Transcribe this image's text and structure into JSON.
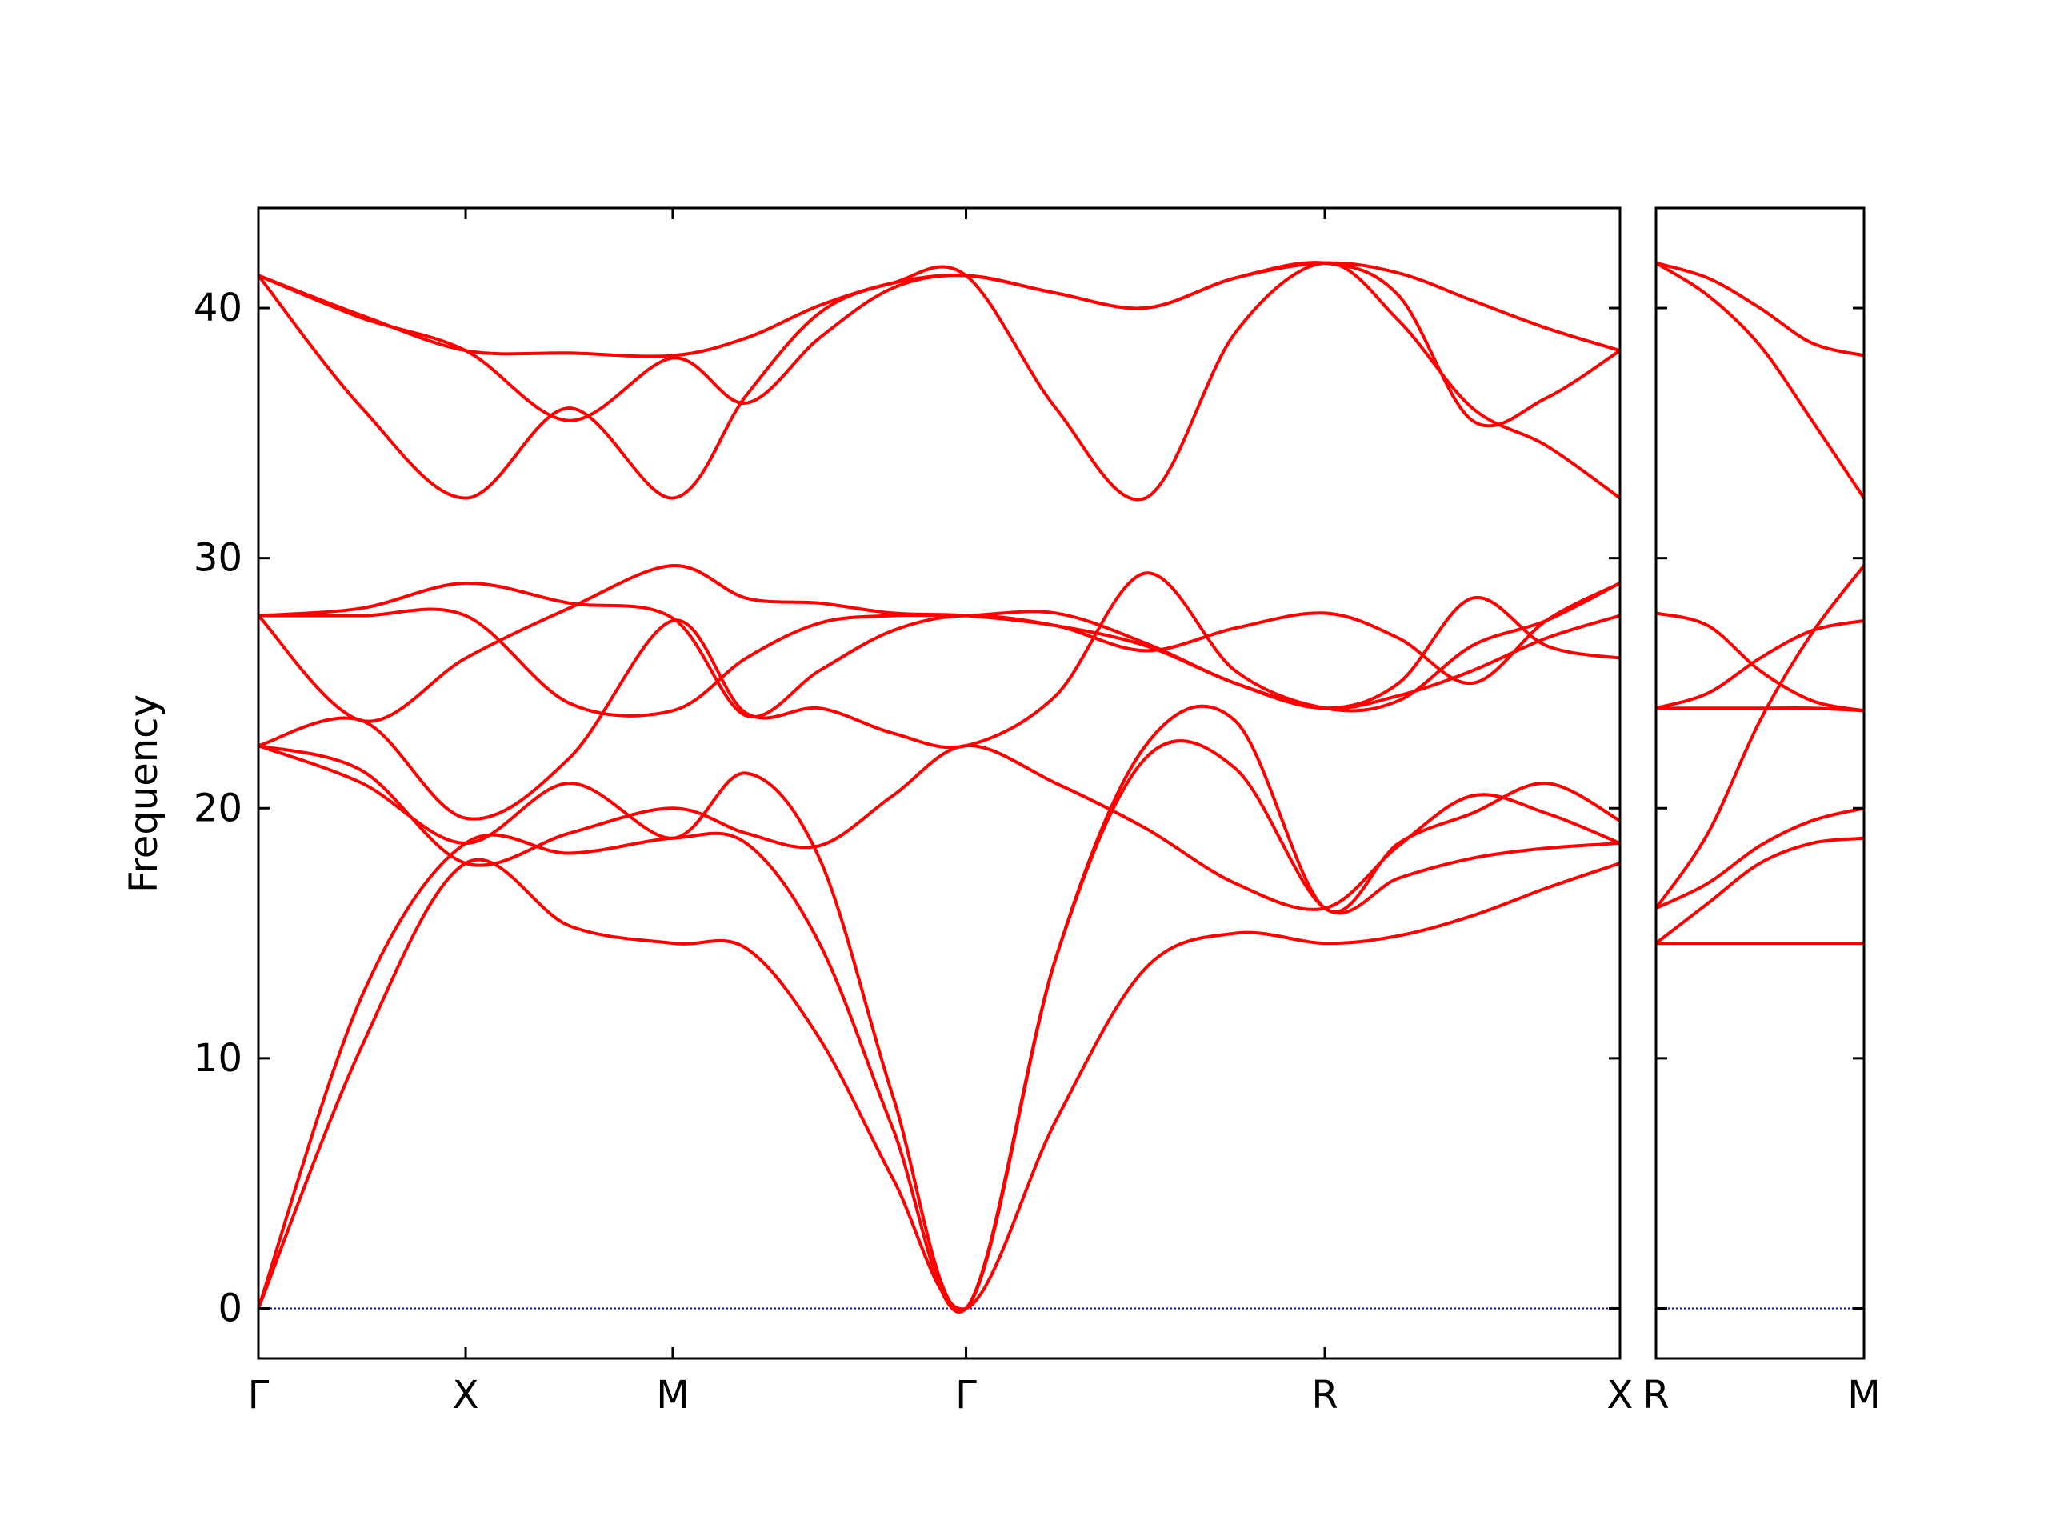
{
  "chart_data": {
    "type": "line",
    "title": "",
    "ylabel": "Frequency",
    "ylim": [
      -2,
      44
    ],
    "yticks": [
      0,
      10,
      20,
      30,
      40
    ],
    "grid": false,
    "colors": {
      "bands": "#ff0000",
      "zero_line": "#0000cc",
      "axes": "#000000"
    },
    "panels": [
      {
        "id": "main",
        "xlim": [
          0,
          1
        ],
        "xticks": [
          {
            "x": 0.0,
            "label": "Γ"
          },
          {
            "x": 0.1522,
            "label": "X"
          },
          {
            "x": 0.3043,
            "label": "M"
          },
          {
            "x": 0.5197,
            "label": "Γ"
          },
          {
            "x": 0.7832,
            "label": "R"
          },
          {
            "x": 1.0,
            "label": "X"
          }
        ],
        "series": [
          {
            "x": [
              0,
              0.0761,
              0.1522,
              0.2283,
              0.3043,
              0.3582,
              0.412,
              0.4659,
              0.5197,
              0.5856,
              0.6515,
              0.7173,
              0.7832,
              0.8374,
              0.8916,
              0.9458,
              1.0
            ],
            "y": [
              0,
              10.5,
              17.8,
              15.3,
              14.6,
              14.4,
              10.8,
              5.2,
              0,
              7.5,
              13.6,
              15.0,
              14.6,
              14.9,
              15.7,
              16.8,
              17.8
            ]
          },
          {
            "x": [
              0,
              0.0761,
              0.1522,
              0.2283,
              0.3043,
              0.3582,
              0.412,
              0.4659,
              0.5197,
              0.5856,
              0.6515,
              0.7173,
              0.7832,
              0.8374,
              0.8916,
              0.9458,
              1.0
            ],
            "y": [
              0,
              12.5,
              18.6,
              18.2,
              18.8,
              18.6,
              14.6,
              7.2,
              0,
              14.0,
              22.0,
              21.6,
              16.0,
              17.2,
              18.0,
              18.4,
              18.6
            ]
          },
          {
            "x": [
              0,
              0.0761,
              0.1522,
              0.2283,
              0.3043,
              0.3582,
              0.412,
              0.4659,
              0.5197,
              0.5856,
              0.6515,
              0.7173,
              0.7832,
              0.8374,
              0.8916,
              0.9458,
              1.0
            ],
            "y": [
              22.5,
              21.0,
              18.6,
              21.0,
              18.8,
              21.4,
              18.0,
              8.5,
              0,
              14.0,
              22.5,
              23.5,
              16.0,
              18.6,
              19.8,
              21.0,
              19.5
            ]
          },
          {
            "x": [
              0,
              0.0761,
              0.1522,
              0.2283,
              0.3043,
              0.3582,
              0.412,
              0.4659,
              0.5197,
              0.5856,
              0.6515,
              0.7173,
              0.7832,
              0.8374,
              0.8916,
              0.9458,
              1.0
            ],
            "y": [
              22.5,
              21.5,
              17.8,
              19.0,
              20.0,
              19.0,
              18.5,
              20.5,
              22.5,
              21.0,
              19.2,
              17.0,
              16.0,
              18.5,
              20.5,
              19.8,
              18.6
            ]
          },
          {
            "x": [
              0,
              0.0761,
              0.1522,
              0.2283,
              0.3043,
              0.3582,
              0.412,
              0.4659,
              0.5197,
              0.5856,
              0.6515,
              0.7173,
              0.7832,
              0.8374,
              0.8916,
              0.9458,
              1.0
            ],
            "y": [
              22.5,
              23.5,
              19.6,
              22.0,
              27.5,
              23.8,
              24.0,
              23.0,
              22.5,
              24.5,
              29.4,
              25.5,
              24.0,
              24.3,
              26.5,
              27.5,
              29.0
            ]
          },
          {
            "x": [
              0,
              0.0761,
              0.1522,
              0.2283,
              0.3043,
              0.3582,
              0.412,
              0.4659,
              0.5197,
              0.5856,
              0.6515,
              0.7173,
              0.7832,
              0.8374,
              0.8916,
              0.9458,
              1.0
            ],
            "y": [
              27.7,
              23.5,
              26.0,
              28.0,
              29.7,
              28.4,
              28.2,
              27.8,
              27.7,
              27.3,
              26.5,
              25.0,
              24.0,
              24.5,
              25.5,
              26.8,
              27.7
            ]
          },
          {
            "x": [
              0,
              0.0761,
              0.1522,
              0.2283,
              0.3043,
              0.3582,
              0.412,
              0.4659,
              0.5197,
              0.5856,
              0.6515,
              0.7173,
              0.7832,
              0.8374,
              0.8916,
              0.9458,
              1.0
            ],
            "y": [
              27.7,
              28.0,
              29.0,
              28.2,
              27.6,
              23.7,
              25.5,
              27.1,
              27.7,
              27.3,
              26.3,
              27.2,
              27.8,
              26.8,
              25.0,
              27.5,
              29.0
            ]
          },
          {
            "x": [
              0,
              0.0761,
              0.1522,
              0.2283,
              0.3043,
              0.3582,
              0.412,
              0.4659,
              0.5197,
              0.5856,
              0.6515,
              0.7173,
              0.7832,
              0.8374,
              0.8916,
              0.9458,
              1.0
            ],
            "y": [
              27.7,
              27.7,
              27.7,
              24.2,
              23.9,
              26.0,
              27.4,
              27.7,
              27.7,
              27.8,
              26.6,
              25.0,
              24.0,
              25.0,
              28.4,
              26.5,
              26.0
            ]
          },
          {
            "x": [
              0,
              0.0761,
              0.1522,
              0.2283,
              0.3043,
              0.3582,
              0.412,
              0.4659,
              0.5197,
              0.5856,
              0.6515,
              0.7173,
              0.7832,
              0.8374,
              0.8916,
              0.9458,
              1.0
            ],
            "y": [
              41.3,
              36.0,
              32.4,
              36.0,
              32.4,
              36.5,
              39.8,
              41.0,
              41.3,
              36.0,
              32.4,
              39.0,
              41.8,
              39.5,
              36.0,
              34.5,
              32.4
            ]
          },
          {
            "x": [
              0,
              0.0761,
              0.1522,
              0.2283,
              0.3043,
              0.3582,
              0.412,
              0.4659,
              0.5197,
              0.5856,
              0.6515,
              0.7173,
              0.7832,
              0.8374,
              0.8916,
              0.9458,
              1.0
            ],
            "y": [
              41.3,
              39.6,
              38.3,
              35.5,
              38.0,
              36.2,
              38.8,
              40.8,
              41.3,
              40.6,
              40.0,
              41.2,
              41.8,
              40.5,
              35.5,
              36.4,
              38.3
            ]
          },
          {
            "x": [
              0,
              0.0761,
              0.1522,
              0.2283,
              0.3043,
              0.3582,
              0.412,
              0.4659,
              0.5197,
              0.5856,
              0.6515,
              0.7173,
              0.7832,
              0.8374,
              0.8916,
              0.9458,
              1.0
            ],
            "y": [
              41.3,
              39.7,
              38.3,
              38.2,
              38.1,
              38.8,
              40.1,
              41.0,
              41.3,
              40.6,
              40.0,
              41.2,
              41.8,
              41.4,
              40.3,
              39.2,
              38.3
            ]
          }
        ]
      },
      {
        "id": "side",
        "xlim": [
          0,
          1
        ],
        "xticks": [
          {
            "x": 0.0,
            "label": "R"
          },
          {
            "x": 1.0,
            "label": "M"
          }
        ],
        "series": [
          {
            "x": [
              0,
              0.25,
              0.5,
              0.75,
              1.0
            ],
            "y": [
              14.6,
              14.6,
              14.6,
              14.6,
              14.6
            ]
          },
          {
            "x": [
              0,
              0.25,
              0.5,
              0.75,
              1.0
            ],
            "y": [
              14.6,
              16.2,
              17.8,
              18.6,
              18.8
            ]
          },
          {
            "x": [
              0,
              0.25,
              0.5,
              0.75,
              1.0
            ],
            "y": [
              16.0,
              17.0,
              18.5,
              19.5,
              20.0
            ]
          },
          {
            "x": [
              0,
              0.25,
              0.5,
              0.75,
              1.0
            ],
            "y": [
              16.0,
              19.0,
              23.5,
              27.0,
              29.7
            ]
          },
          {
            "x": [
              0,
              0.25,
              0.5,
              0.75,
              1.0
            ],
            "y": [
              24.0,
              24.0,
              24.0,
              24.0,
              23.9
            ]
          },
          {
            "x": [
              0,
              0.25,
              0.5,
              0.75,
              1.0
            ],
            "y": [
              24.0,
              24.6,
              26.0,
              27.1,
              27.5
            ]
          },
          {
            "x": [
              0,
              0.25,
              0.5,
              0.75,
              1.0
            ],
            "y": [
              27.8,
              27.3,
              25.5,
              24.3,
              23.9
            ]
          },
          {
            "x": [
              0,
              0.25,
              0.5,
              0.75,
              1.0
            ],
            "y": [
              41.8,
              40.5,
              38.5,
              35.5,
              32.4
            ]
          },
          {
            "x": [
              0,
              0.25,
              0.5,
              0.75,
              1.0
            ],
            "y": [
              41.8,
              41.2,
              40.0,
              38.6,
              38.1
            ]
          }
        ]
      }
    ]
  }
}
